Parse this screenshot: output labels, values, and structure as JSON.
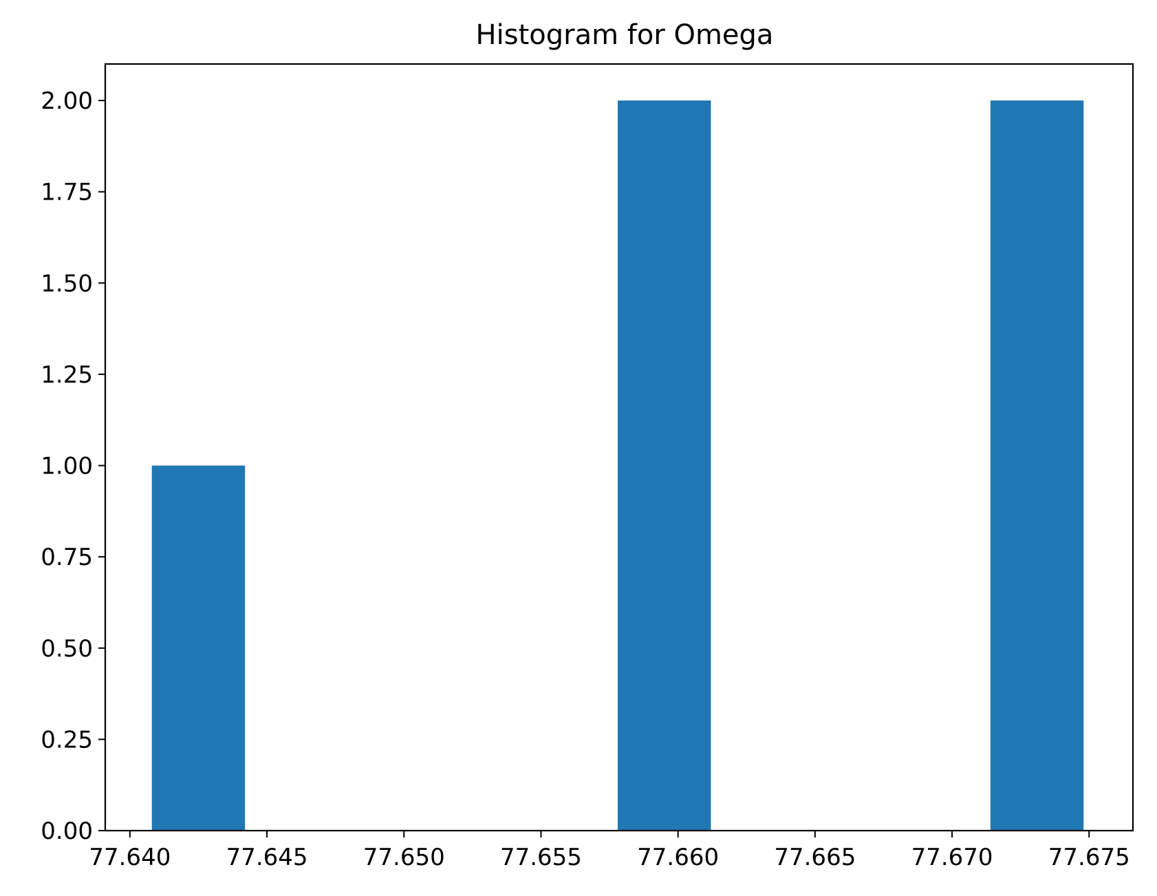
{
  "chart_data": {
    "type": "bar",
    "title": "Histogram for Omega",
    "xlabel": "",
    "ylabel": "",
    "xlim": [
      77.6391,
      77.6766
    ],
    "ylim": [
      0,
      2.1
    ],
    "x_ticks": [
      77.64,
      77.645,
      77.65,
      77.655,
      77.66,
      77.665,
      77.67,
      77.675
    ],
    "x_tick_labels": [
      "77.640",
      "77.645",
      "77.650",
      "77.655",
      "77.660",
      "77.665",
      "77.670",
      "77.675"
    ],
    "y_ticks": [
      0,
      0.25,
      0.5,
      0.75,
      1.0,
      1.25,
      1.5,
      1.75,
      2.0
    ],
    "y_tick_labels": [
      "0.00",
      "0.25",
      "0.50",
      "0.75",
      "1.00",
      "1.25",
      "1.50",
      "1.75",
      "2.00"
    ],
    "bins": [
      {
        "x0": 77.6408,
        "x1": 77.6442,
        "count": 1
      },
      {
        "x0": 77.6442,
        "x1": 77.6476,
        "count": 0
      },
      {
        "x0": 77.6476,
        "x1": 77.651,
        "count": 0
      },
      {
        "x0": 77.651,
        "x1": 77.6544,
        "count": 0
      },
      {
        "x0": 77.6544,
        "x1": 77.6578,
        "count": 0
      },
      {
        "x0": 77.6578,
        "x1": 77.6612,
        "count": 2
      },
      {
        "x0": 77.6612,
        "x1": 77.6646,
        "count": 0
      },
      {
        "x0": 77.6646,
        "x1": 77.668,
        "count": 0
      },
      {
        "x0": 77.668,
        "x1": 77.6714,
        "count": 0
      },
      {
        "x0": 77.6714,
        "x1": 77.6748,
        "count": 2
      }
    ],
    "grid": false,
    "bar_color": "#1f77b4"
  }
}
